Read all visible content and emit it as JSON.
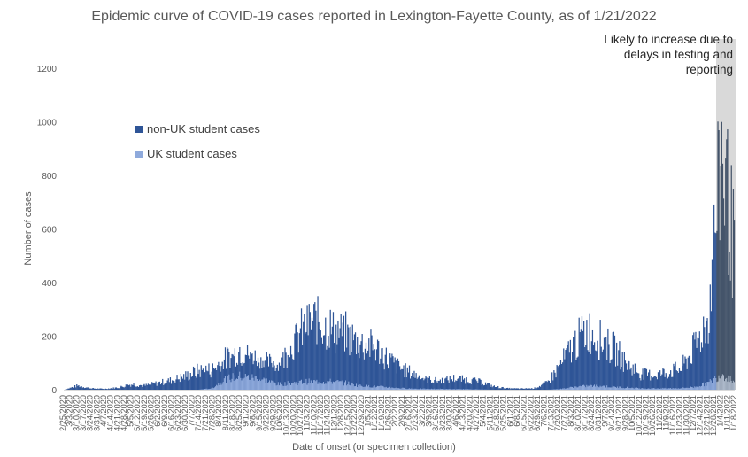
{
  "chart_data": {
    "type": "bar",
    "title": "Epidemic curve of COVID-19 cases reported in Lexington-Fayette County, as of 1/21/2022",
    "xlabel": "Date of onset (or specimen collection)",
    "ylabel": "Number of cases",
    "ylim": [
      0,
      1200
    ],
    "yticks": [
      0,
      200,
      400,
      600,
      800,
      1000,
      1200
    ],
    "stacked": true,
    "legend_position": "upper-left",
    "grid": false,
    "colors": {
      "non_uk": "#2f5597",
      "uk": "#8faadc",
      "shade": "#d9d9d9"
    },
    "annotation": "Likely to increase due to delays in testing and reporting",
    "shaded_region": [
      "1/7/2022",
      "1/21/2022"
    ],
    "categories": [
      "2/25/2020",
      "3/10/2020",
      "3/24/2020",
      "4/7/2020",
      "4/21/2020",
      "5/5/2020",
      "5/19/2020",
      "6/2/2020",
      "6/16/2020",
      "6/30/2020",
      "7/14/2020",
      "7/28/2020",
      "8/11/2020",
      "8/25/2020",
      "9/8/2020",
      "9/22/2020",
      "10/6/2020",
      "10/20/2020",
      "11/3/2020",
      "11/17/2020",
      "12/1/2020",
      "12/15/2020",
      "12/29/2020",
      "1/12/2021",
      "1/26/2021",
      "2/9/2021",
      "2/23/2021",
      "3/9/2021",
      "3/23/2021",
      "4/6/2021",
      "4/20/2021",
      "5/4/2021",
      "5/18/2021",
      "6/1/2021",
      "6/15/2021",
      "6/29/2021",
      "7/13/2021",
      "7/27/2021",
      "8/10/2021",
      "8/24/2021",
      "9/7/2021",
      "9/21/2021",
      "10/5/2021",
      "10/19/2021",
      "11/2/2021",
      "11/16/2021",
      "11/30/2021",
      "12/14/2021",
      "12/28/2021",
      "1/11/2022",
      "1/21/2022"
    ],
    "tick_labels": [
      "2/25/2020",
      "3/3/2020",
      "3/10/2020",
      "3/17/2020",
      "3/24/2020",
      "3/31/2020",
      "4/7/2020",
      "4/14/2020",
      "4/21/2020",
      "4/28/2020",
      "5/5/2020",
      "5/12/2020",
      "5/19/2020",
      "5/26/2020",
      "6/2/2020",
      "6/9/2020",
      "6/16/2020",
      "6/23/2020",
      "6/30/2020",
      "7/7/2020",
      "7/14/2020",
      "7/21/2020",
      "7/28/2020",
      "8/4/2020",
      "8/11/2020",
      "8/18/2020",
      "8/25/2020",
      "9/1/2020",
      "9/8/2020",
      "9/15/2020",
      "9/22/2020",
      "9/29/2020",
      "10/6/2020",
      "10/13/2020",
      "10/20/2020",
      "10/27/2020",
      "11/3/2020",
      "11/10/2020",
      "11/17/2020",
      "11/24/2020",
      "12/1/2020",
      "12/8/2020",
      "12/15/2020",
      "12/22/2020",
      "12/29/2020",
      "1/5/2021",
      "1/12/2021",
      "1/19/2021",
      "1/26/2021",
      "2/2/2021",
      "2/9/2021",
      "2/16/2021",
      "2/23/2021",
      "3/2/2021",
      "3/9/2021",
      "3/16/2021",
      "3/23/2021",
      "3/30/2021",
      "4/6/2021",
      "4/13/2021",
      "4/20/2021",
      "4/27/2021",
      "5/4/2021",
      "5/11/2021",
      "5/18/2021",
      "5/25/2021",
      "6/1/2021",
      "6/8/2021",
      "6/15/2021",
      "6/22/2021",
      "6/29/2021",
      "7/6/2021",
      "7/13/2021",
      "7/20/2021",
      "7/27/2021",
      "8/3/2021",
      "8/10/2021",
      "8/17/2021",
      "8/24/2021",
      "8/31/2021",
      "9/7/2021",
      "9/14/2021",
      "9/21/2021",
      "9/28/2021",
      "10/5/2021",
      "10/12/2021",
      "10/19/2021",
      "10/26/2021",
      "11/2/2021",
      "11/9/2021",
      "11/16/2021",
      "11/23/2021",
      "11/30/2021",
      "12/7/2021",
      "12/14/2021",
      "12/21/2021",
      "12/28/2021",
      "1/4/2022",
      "1/11/2022",
      "1/18/2022"
    ],
    "series": [
      {
        "name": "non-UK student cases",
        "values": [
          0,
          15,
          5,
          3,
          8,
          20,
          15,
          25,
          35,
          50,
          70,
          70,
          75,
          90,
          80,
          70,
          75,
          140,
          210,
          230,
          190,
          180,
          160,
          150,
          110,
          75,
          55,
          35,
          30,
          40,
          35,
          28,
          12,
          5,
          4,
          5,
          25,
          90,
          160,
          210,
          170,
          140,
          85,
          55,
          50,
          60,
          75,
          150,
          240,
          850,
          450
        ]
      },
      {
        "name": "UK student cases",
        "values": [
          0,
          0,
          0,
          0,
          0,
          0,
          0,
          0,
          0,
          0,
          0,
          5,
          40,
          50,
          45,
          35,
          20,
          25,
          30,
          30,
          30,
          25,
          15,
          12,
          10,
          6,
          4,
          3,
          3,
          2,
          2,
          1,
          0,
          0,
          0,
          0,
          0,
          3,
          10,
          14,
          14,
          10,
          8,
          5,
          5,
          5,
          6,
          10,
          25,
          60,
          30
        ]
      }
    ]
  }
}
